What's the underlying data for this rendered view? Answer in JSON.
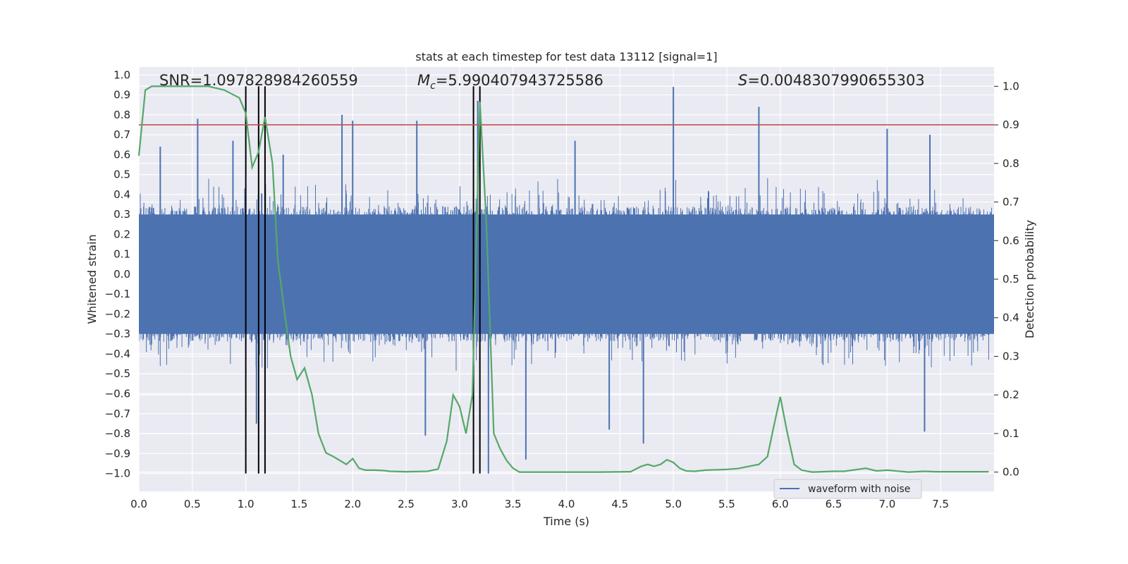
{
  "chart_data": {
    "type": "line",
    "title": "stats at each timestep for test data 13112 [signal=1]",
    "xlabel": "Time (s)",
    "ylabel": "Whitened strain",
    "y2label": "Detection probability",
    "xlim": [
      0,
      8
    ],
    "ylim": [
      -1.09,
      1.04
    ],
    "y2lim": [
      -0.05,
      1.05
    ],
    "xticks": [
      0.0,
      0.5,
      1.0,
      1.5,
      2.0,
      2.5,
      3.0,
      3.5,
      4.0,
      4.5,
      5.0,
      5.5,
      6.0,
      6.5,
      7.0,
      7.5
    ],
    "xtick_labels": [
      "0.0",
      "0.5",
      "1.0",
      "1.5",
      "2.0",
      "2.5",
      "3.0",
      "3.5",
      "4.0",
      "4.5",
      "5.0",
      "5.5",
      "6.0",
      "6.5",
      "7.0",
      "7.5"
    ],
    "yticks": [
      1.0,
      0.9,
      0.8,
      0.7,
      0.6,
      0.5,
      0.4,
      0.3,
      0.2,
      0.1,
      0.0,
      -0.1,
      -0.2,
      -0.3,
      -0.4,
      -0.5,
      -0.6,
      -0.7,
      -0.8,
      -0.9,
      -1.0
    ],
    "ytick_labels": [
      "1.0",
      "0.9",
      "0.8",
      "0.7",
      "0.6",
      "0.5",
      "0.4",
      "0.3",
      "0.2",
      "0.1",
      "0.0",
      "−0.1",
      "−0.2",
      "−0.3",
      "−0.4",
      "−0.5",
      "−0.6",
      "−0.7",
      "−0.8",
      "−0.9",
      "−1.0"
    ],
    "y2ticks": [
      0.0,
      0.1,
      0.2,
      0.3,
      0.4,
      0.5,
      0.6,
      0.7,
      0.8,
      0.9,
      1.0
    ],
    "y2tick_labels": [
      "0.0",
      "0.1",
      "0.2",
      "0.3",
      "0.4",
      "0.5",
      "0.6",
      "0.7",
      "0.8",
      "0.9",
      "1.0"
    ],
    "grid": true,
    "annotations": {
      "snr": "SNR=1.097828984260559",
      "mc_symbol": "M",
      "mc_subscript": "c",
      "mc_value": "=5.990407943725586",
      "s_symbol": "S",
      "s_value": "=0.0048307990655303"
    },
    "threshold": {
      "y2": 0.9,
      "color": "#c44e52"
    },
    "vertical_lines": [
      1.0,
      1.12,
      1.18,
      3.13,
      3.19
    ],
    "series": [
      {
        "name": "waveform with noise",
        "axis": "left",
        "color": "#4c72b0",
        "style": "dense noise",
        "spikes": [
          [
            0.2,
            0.64
          ],
          [
            0.55,
            0.78
          ],
          [
            0.88,
            0.67
          ],
          [
            1.1,
            -0.75
          ],
          [
            1.35,
            0.6
          ],
          [
            1.9,
            0.8
          ],
          [
            2.0,
            0.77
          ],
          [
            2.6,
            0.77
          ],
          [
            2.68,
            -0.81
          ],
          [
            3.17,
            0.87
          ],
          [
            3.27,
            -1.0
          ],
          [
            3.62,
            -0.93
          ],
          [
            4.08,
            0.67
          ],
          [
            4.4,
            -0.78
          ],
          [
            4.72,
            -0.85
          ],
          [
            5.0,
            0.94
          ],
          [
            5.8,
            0.84
          ],
          [
            7.0,
            0.73
          ],
          [
            7.35,
            -0.79
          ],
          [
            7.4,
            0.7
          ]
        ]
      },
      {
        "name": "",
        "axis": "right",
        "color": "#55a868",
        "x": [
          0.0,
          0.06,
          0.12,
          0.2,
          0.35,
          0.5,
          0.65,
          0.8,
          0.87,
          0.94,
          1.0,
          1.06,
          1.12,
          1.18,
          1.25,
          1.3,
          1.36,
          1.42,
          1.48,
          1.55,
          1.62,
          1.68,
          1.75,
          1.82,
          1.88,
          1.94,
          2.0,
          2.06,
          2.12,
          2.2,
          2.28,
          2.35,
          2.5,
          2.7,
          2.8,
          2.88,
          2.94,
          3.0,
          3.06,
          3.12,
          3.19,
          3.25,
          3.32,
          3.38,
          3.44,
          3.5,
          3.56,
          3.7,
          4.0,
          4.3,
          4.6,
          4.7,
          4.76,
          4.82,
          4.88,
          4.94,
          5.0,
          5.06,
          5.12,
          5.2,
          5.3,
          5.5,
          5.6,
          5.8,
          5.88,
          5.94,
          6.0,
          6.06,
          6.13,
          6.2,
          6.3,
          6.5,
          6.6,
          6.8,
          6.9,
          7.0,
          7.2,
          7.35,
          7.45,
          7.6,
          7.8,
          7.95
        ],
        "values": [
          0.82,
          0.99,
          1.0,
          1.0,
          1.0,
          1.0,
          1.0,
          0.99,
          0.98,
          0.97,
          0.93,
          0.79,
          0.83,
          0.92,
          0.8,
          0.55,
          0.42,
          0.3,
          0.24,
          0.27,
          0.2,
          0.1,
          0.05,
          0.04,
          0.03,
          0.02,
          0.035,
          0.01,
          0.005,
          0.005,
          0.004,
          0.002,
          0.001,
          0.002,
          0.008,
          0.08,
          0.2,
          0.17,
          0.1,
          0.2,
          0.96,
          0.65,
          0.1,
          0.06,
          0.03,
          0.01,
          0.0,
          0.0,
          0.0,
          0.0,
          0.001,
          0.015,
          0.02,
          0.015,
          0.02,
          0.032,
          0.025,
          0.01,
          0.003,
          0.002,
          0.005,
          0.007,
          0.009,
          0.02,
          0.04,
          0.12,
          0.195,
          0.11,
          0.02,
          0.005,
          0.0,
          0.002,
          0.002,
          0.01,
          0.003,
          0.005,
          0.0,
          0.002,
          0.001,
          0.001,
          0.001,
          0.001
        ]
      }
    ],
    "legend": {
      "position": "lower-right",
      "entries": [
        "waveform with noise"
      ]
    }
  }
}
